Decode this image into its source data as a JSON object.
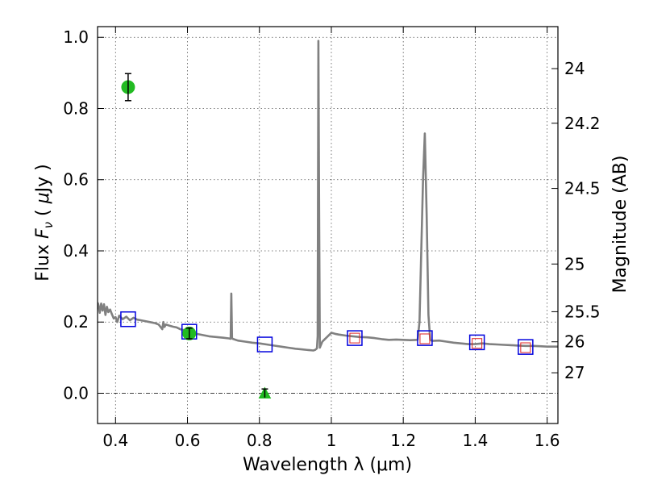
{
  "chart_data": {
    "type": "scatter",
    "xlabel": "Wavelength  λ (μm)",
    "ylabel_left": "Flux  F_ν  ( μJy )",
    "ylabel_left_parts": [
      "Flux  ",
      "F",
      "ν",
      "  ( ",
      "μ",
      "Jy )"
    ],
    "ylabel_right": "Magnitude (AB)",
    "xlim": [
      0.35,
      1.63
    ],
    "ylim": [
      -0.085,
      1.03
    ],
    "grid": true,
    "x_ticks": [
      0.4,
      0.6,
      0.8,
      1.0,
      1.2,
      1.4,
      1.6
    ],
    "x_tick_labels": [
      "0.4",
      "0.6",
      "0.8",
      "1",
      "1.2",
      "1.4",
      "1.6"
    ],
    "y_ticks": [
      0.0,
      0.2,
      0.4,
      0.6,
      0.8,
      1.0
    ],
    "y_tick_labels": [
      "0.0",
      "0.2",
      "0.4",
      "0.6",
      "0.8",
      "1.0"
    ],
    "right_axis": {
      "ticks": [
        24,
        24.2,
        24.5,
        25,
        25.5,
        26,
        27
      ],
      "tick_labels": [
        "24",
        "24.2",
        "24.5",
        "25",
        "25.5",
        "26",
        "27"
      ]
    },
    "colors": {
      "spectrum": "#808080",
      "model_marker": "#0000dd",
      "observed_marker": "#dd2222",
      "detection": "#22bb22",
      "errorbar": "#000000",
      "grid": "#555555",
      "zero_line": "#000000"
    },
    "series": [
      {
        "name": "model spectrum",
        "style": "line",
        "x": [
          0.35,
          0.352,
          0.356,
          0.36,
          0.364,
          0.368,
          0.372,
          0.376,
          0.38,
          0.385,
          0.39,
          0.395,
          0.4,
          0.405,
          0.41,
          0.42,
          0.43,
          0.44,
          0.45,
          0.46,
          0.47,
          0.48,
          0.49,
          0.5,
          0.51,
          0.52,
          0.53,
          0.533,
          0.536,
          0.54,
          0.55,
          0.56,
          0.57,
          0.58,
          0.6,
          0.62,
          0.64,
          0.66,
          0.68,
          0.7,
          0.715,
          0.72,
          0.722,
          0.724,
          0.726,
          0.728,
          0.74,
          0.76,
          0.78,
          0.8,
          0.82,
          0.84,
          0.86,
          0.88,
          0.9,
          0.92,
          0.94,
          0.95,
          0.955,
          0.96,
          0.962,
          0.964,
          0.966,
          0.968,
          0.97,
          0.975,
          0.98,
          0.99,
          1.0,
          1.01,
          1.02,
          1.04,
          1.06,
          1.08,
          1.1,
          1.12,
          1.14,
          1.16,
          1.18,
          1.2,
          1.22,
          1.24,
          1.245,
          1.25,
          1.255,
          1.26,
          1.265,
          1.27,
          1.275,
          1.28,
          1.3,
          1.32,
          1.34,
          1.36,
          1.38,
          1.4,
          1.42,
          1.44,
          1.46,
          1.48,
          1.5,
          1.52,
          1.54,
          1.56,
          1.58,
          1.6,
          1.63
        ],
        "y": [
          0.255,
          0.25,
          0.226,
          0.252,
          0.232,
          0.25,
          0.22,
          0.243,
          0.228,
          0.235,
          0.222,
          0.21,
          0.214,
          0.2,
          0.218,
          0.208,
          0.215,
          0.205,
          0.212,
          0.207,
          0.205,
          0.203,
          0.201,
          0.199,
          0.197,
          0.193,
          0.18,
          0.2,
          0.186,
          0.193,
          0.19,
          0.187,
          0.185,
          0.18,
          0.175,
          0.168,
          0.164,
          0.16,
          0.158,
          0.156,
          0.154,
          0.153,
          0.28,
          0.155,
          0.153,
          0.152,
          0.148,
          0.145,
          0.142,
          0.14,
          0.137,
          0.134,
          0.131,
          0.128,
          0.125,
          0.123,
          0.121,
          0.12,
          0.122,
          0.126,
          0.16,
          0.99,
          0.52,
          0.128,
          0.133,
          0.145,
          0.15,
          0.16,
          0.17,
          0.167,
          0.165,
          0.162,
          0.16,
          0.158,
          0.157,
          0.155,
          0.152,
          0.15,
          0.151,
          0.15,
          0.149,
          0.15,
          0.2,
          0.4,
          0.6,
          0.73,
          0.5,
          0.22,
          0.15,
          0.147,
          0.148,
          0.145,
          0.142,
          0.14,
          0.138,
          0.138,
          0.14,
          0.138,
          0.137,
          0.136,
          0.135,
          0.134,
          0.133,
          0.133,
          0.132,
          0.131,
          0.131
        ]
      },
      {
        "name": "model photometry",
        "style": "open-square",
        "x": [
          0.435,
          0.605,
          0.815,
          1.065,
          1.26,
          1.405,
          1.54
        ],
        "y": [
          0.208,
          0.173,
          0.137,
          0.155,
          0.155,
          0.143,
          0.13
        ]
      },
      {
        "name": "observed photometry",
        "style": "small-open-square",
        "x": [
          1.065,
          1.26,
          1.405,
          1.54
        ],
        "y": [
          0.155,
          0.153,
          0.14,
          0.128
        ]
      },
      {
        "name": "detections",
        "style": "filled-circle",
        "x": [
          0.435,
          0.605
        ],
        "y": [
          0.86,
          0.168
        ],
        "yerr": [
          0.038,
          0.015
        ]
      },
      {
        "name": "upper limit",
        "style": "filled-triangle",
        "x": [
          0.815
        ],
        "y": [
          0.0
        ],
        "yerr": [
          0.012
        ]
      }
    ]
  }
}
